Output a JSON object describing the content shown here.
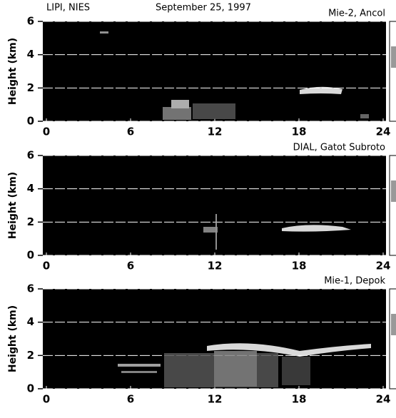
{
  "header": {
    "left": "LIPI, NIES",
    "date": "September 25, 1997"
  },
  "chart_data": [
    {
      "type": "heatmap",
      "title": "Mie-2,  Ancol",
      "ylabel": "Height (km)",
      "xlim": [
        0,
        24
      ],
      "xticks": [
        0,
        6,
        12,
        18,
        24
      ],
      "ylim": [
        0,
        6
      ],
      "yticks": [
        0,
        2,
        4,
        6
      ],
      "grid": true
    },
    {
      "type": "heatmap",
      "title": "DIAL,  Gatot Subroto",
      "ylabel": "Height (km)",
      "xlim": [
        0,
        24
      ],
      "xticks": [
        0,
        6,
        12,
        18,
        24
      ],
      "ylim": [
        0,
        6
      ],
      "yticks": [
        0,
        2,
        4,
        6
      ],
      "grid": true
    },
    {
      "type": "heatmap",
      "title": "Mie-1,  Depok",
      "ylabel": "Height (km)",
      "xlim": [
        0,
        24
      ],
      "xticks": [
        0,
        6,
        12,
        18,
        24
      ],
      "ylim": [
        0,
        6
      ],
      "yticks": [
        0,
        2,
        4,
        6
      ],
      "grid": true
    }
  ]
}
